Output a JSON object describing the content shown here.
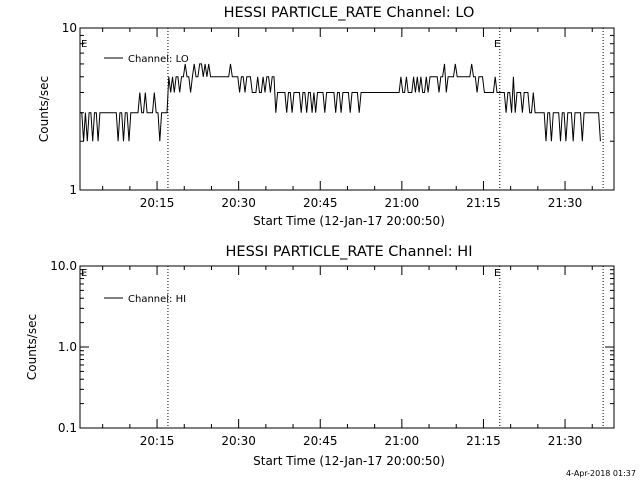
{
  "stamp": "4-Apr-2018 01:37",
  "chart_data": [
    {
      "type": "line",
      "title": "HESSI PARTICLE_RATE Channel: LO",
      "xlabel": "Start Time (12-Jan-17 20:00:50)",
      "ylabel": "Counts/sec",
      "y_scale": "log",
      "ylim": [
        1,
        10
      ],
      "y_ticks": [
        {
          "value": 1,
          "label": "1"
        },
        {
          "value": 10,
          "label": "10"
        }
      ],
      "xlim": [
        "20:00:50",
        "21:39:00"
      ],
      "x_ticks": [
        "20:15",
        "20:30",
        "20:45",
        "21:00",
        "21:15",
        "21:30"
      ],
      "grid": false,
      "legend": {
        "position": "top-left",
        "entries": [
          "Channel: LO"
        ]
      },
      "event_lines": [
        "20:17:00",
        "21:18:00",
        "21:37:00"
      ],
      "event_labels": [
        {
          "text": "E",
          "x": "20:00:50"
        },
        {
          "text": "E",
          "x": "21:18:00"
        }
      ],
      "series": [
        {
          "name": "Channel: LO",
          "x_start": "20:00:50",
          "x_end": "21:36:30",
          "values": [
            3,
            3,
            2,
            3,
            2,
            3,
            3,
            2,
            3,
            3,
            2,
            3,
            3,
            3,
            3,
            3,
            3,
            3,
            3,
            3,
            3,
            2,
            3,
            3,
            2,
            3,
            3,
            2,
            3,
            3,
            3,
            3,
            3,
            4,
            3,
            3,
            4,
            3,
            3,
            3,
            3,
            4,
            3,
            3,
            2,
            3,
            3,
            3,
            3,
            5,
            4,
            5,
            4,
            5,
            5,
            4,
            5,
            5,
            6,
            5,
            5,
            4,
            5,
            6,
            5,
            5,
            6,
            6,
            5,
            6,
            5,
            6,
            5,
            5,
            5,
            5,
            5,
            5,
            5,
            5,
            5,
            5,
            5,
            6,
            5,
            5,
            5,
            5,
            4,
            5,
            5,
            4,
            5,
            5,
            5,
            4,
            4,
            4,
            5,
            4,
            4,
            5,
            4,
            5,
            5,
            4,
            5,
            5,
            3,
            4,
            4,
            4,
            4,
            4,
            3,
            4,
            4,
            3,
            4,
            4,
            4,
            4,
            3,
            4,
            4,
            3,
            4,
            4,
            3,
            4,
            3,
            4,
            4,
            4,
            4,
            3,
            4,
            4,
            4,
            4,
            4,
            3,
            4,
            4,
            3,
            4,
            4,
            4,
            4,
            3,
            4,
            4,
            4,
            4,
            3,
            4,
            4,
            4,
            4,
            4,
            4,
            4,
            4,
            4,
            4,
            4,
            4,
            4,
            4,
            4,
            4,
            4,
            4,
            4,
            4,
            4,
            4,
            5,
            4,
            4,
            5,
            4,
            4,
            4,
            5,
            4,
            5,
            4,
            5,
            4,
            4,
            5,
            4,
            5,
            5,
            5,
            5,
            5,
            4,
            5,
            5,
            6,
            4,
            5,
            5,
            5,
            5,
            6,
            5,
            5,
            5,
            5,
            5,
            5,
            5,
            5,
            6,
            5,
            5,
            4,
            5,
            5,
            5,
            4,
            4,
            4,
            4,
            4,
            4,
            5,
            4,
            4,
            4,
            4,
            4,
            3,
            4,
            4,
            3,
            5,
            3,
            4,
            4,
            4,
            3,
            4,
            4,
            4,
            3,
            3,
            4,
            3,
            3,
            3,
            3,
            3,
            3,
            2,
            3,
            3,
            2,
            3,
            3,
            3,
            3,
            2,
            3,
            3,
            2,
            3,
            3,
            3,
            2,
            3,
            3,
            3,
            3,
            2,
            3,
            3,
            3,
            3,
            3,
            3,
            3,
            3,
            3,
            2
          ]
        }
      ]
    },
    {
      "type": "line",
      "title": "HESSI PARTICLE_RATE Channel: HI",
      "xlabel": "Start Time (12-Jan-17 20:00:50)",
      "ylabel": "Counts/sec",
      "y_scale": "log",
      "ylim": [
        0.1,
        10
      ],
      "y_ticks": [
        {
          "value": 0.1,
          "label": "0.1"
        },
        {
          "value": 1,
          "label": "1.0"
        },
        {
          "value": 10,
          "label": "10.0"
        }
      ],
      "xlim": [
        "20:00:50",
        "21:39:00"
      ],
      "x_ticks": [
        "20:15",
        "20:30",
        "20:45",
        "21:00",
        "21:15",
        "21:30"
      ],
      "grid": false,
      "legend": {
        "position": "top-left",
        "entries": [
          "Channel: HI"
        ]
      },
      "event_lines": [
        "20:17:00",
        "21:18:00",
        "21:37:00"
      ],
      "event_labels": [
        {
          "text": "E",
          "x": "20:00:50"
        },
        {
          "text": "E",
          "x": "21:18:00"
        }
      ],
      "series": [
        {
          "name": "Channel: HI",
          "values": []
        }
      ]
    }
  ]
}
